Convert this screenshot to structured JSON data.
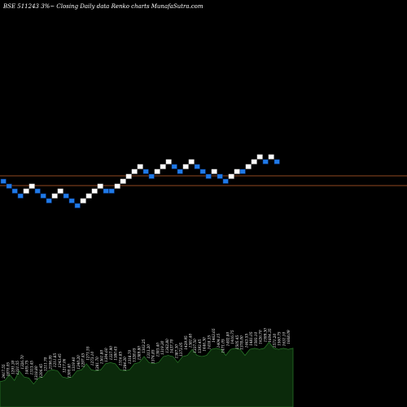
{
  "title": "BSE 511243 3%~  Closing Daily data  Renko  charts MunafaSutra.com",
  "colors": {
    "background": "#000000",
    "up_brick": "#ffffff",
    "down_brick": "#1f7ae8",
    "down_brick_edge": "#0b3a8a",
    "guide_line": "#c0622a",
    "volume_fill": "#0b2a0b",
    "volume_stroke": "#2f8a2f",
    "label": "#ffffff"
  },
  "chart_data": {
    "type": "renko",
    "title": "BSE 511243 3%~  Closing Daily data  Renko  charts MunafaSutra.com",
    "brick_step_percent": 3,
    "bricks": [
      {
        "dir": "down",
        "level": 16
      },
      {
        "dir": "down",
        "level": 15
      },
      {
        "dir": "down",
        "level": 14
      },
      {
        "dir": "down",
        "level": 13
      },
      {
        "dir": "up",
        "level": 14
      },
      {
        "dir": "up",
        "level": 15
      },
      {
        "dir": "down",
        "level": 14
      },
      {
        "dir": "down",
        "level": 13
      },
      {
        "dir": "down",
        "level": 12
      },
      {
        "dir": "up",
        "level": 13
      },
      {
        "dir": "up",
        "level": 14
      },
      {
        "dir": "down",
        "level": 13
      },
      {
        "dir": "down",
        "level": 12
      },
      {
        "dir": "down",
        "level": 11
      },
      {
        "dir": "up",
        "level": 12
      },
      {
        "dir": "up",
        "level": 13
      },
      {
        "dir": "up",
        "level": 14
      },
      {
        "dir": "up",
        "level": 15
      },
      {
        "dir": "down",
        "level": 14
      },
      {
        "dir": "down",
        "level": 14
      },
      {
        "dir": "up",
        "level": 15
      },
      {
        "dir": "up",
        "level": 16
      },
      {
        "dir": "up",
        "level": 17
      },
      {
        "dir": "up",
        "level": 18
      },
      {
        "dir": "up",
        "level": 19
      },
      {
        "dir": "down",
        "level": 18
      },
      {
        "dir": "down",
        "level": 17
      },
      {
        "dir": "up",
        "level": 18
      },
      {
        "dir": "up",
        "level": 19
      },
      {
        "dir": "up",
        "level": 20
      },
      {
        "dir": "down",
        "level": 19
      },
      {
        "dir": "down",
        "level": 18
      },
      {
        "dir": "up",
        "level": 19
      },
      {
        "dir": "up",
        "level": 20
      },
      {
        "dir": "down",
        "level": 19
      },
      {
        "dir": "down",
        "level": 18
      },
      {
        "dir": "down",
        "level": 17
      },
      {
        "dir": "up",
        "level": 18
      },
      {
        "dir": "down",
        "level": 17
      },
      {
        "dir": "down",
        "level": 16
      },
      {
        "dir": "up",
        "level": 17
      },
      {
        "dir": "up",
        "level": 18
      },
      {
        "dir": "down",
        "level": 18
      },
      {
        "dir": "up",
        "level": 19
      },
      {
        "dir": "up",
        "level": 20
      },
      {
        "dir": "up",
        "level": 21
      },
      {
        "dir": "down",
        "level": 20
      },
      {
        "dir": "up",
        "level": 21
      },
      {
        "dir": "down",
        "level": 20
      }
    ],
    "brick_labels": [
      "2417.55",
      "1870.05",
      "1291.30",
      "1331.55",
      "1326.70",
      "1405.75",
      "1313.45",
      "1318.80",
      "1206.45",
      "1211.70",
      "2196.95",
      "1211.85",
      "1243.45",
      "1217.06",
      "1300.40",
      "1319.40",
      "1340.20",
      "1297.45",
      "1271.55",
      "1273.10",
      "1281.70",
      "1361.80",
      "1304.60",
      "1337.90",
      "1380.45",
      "1316.85",
      "1284.20",
      "1318.70",
      "1328.65",
      "1389.80",
      "1363.25",
      "1313.20",
      "1374.85",
      "1393.40",
      "1319.30",
      "1362.80",
      "1437.70",
      "1387.30",
      "1373.05",
      "1429.95",
      "1381.40",
      "1337.50",
      "1393.45",
      "1446.30",
      "1418.35",
      "1463.65",
      "1404.15",
      "1471.05",
      "1492.80",
      "1416.75",
      "1505.45",
      "1378.00",
      "1443.55",
      "1481.05",
      "1593.10",
      "1626.70",
      "1599.30",
      "1604.35",
      "1571.20",
      "1560.75",
      "1631.10",
      "1668.09"
    ],
    "volume_profile": [
      3,
      4,
      5,
      4,
      6,
      5,
      4,
      3,
      4,
      5,
      6,
      7,
      6,
      5,
      4,
      5,
      6,
      7,
      8,
      7,
      6,
      7,
      8,
      9,
      8,
      7,
      6,
      7,
      8,
      9,
      10,
      9,
      8,
      9,
      10,
      11,
      10,
      9,
      10,
      11,
      12,
      11,
      10,
      11,
      12,
      13,
      12,
      11,
      12,
      13,
      12,
      11,
      12,
      13,
      12,
      13,
      14,
      13,
      12,
      13,
      12,
      13
    ]
  }
}
